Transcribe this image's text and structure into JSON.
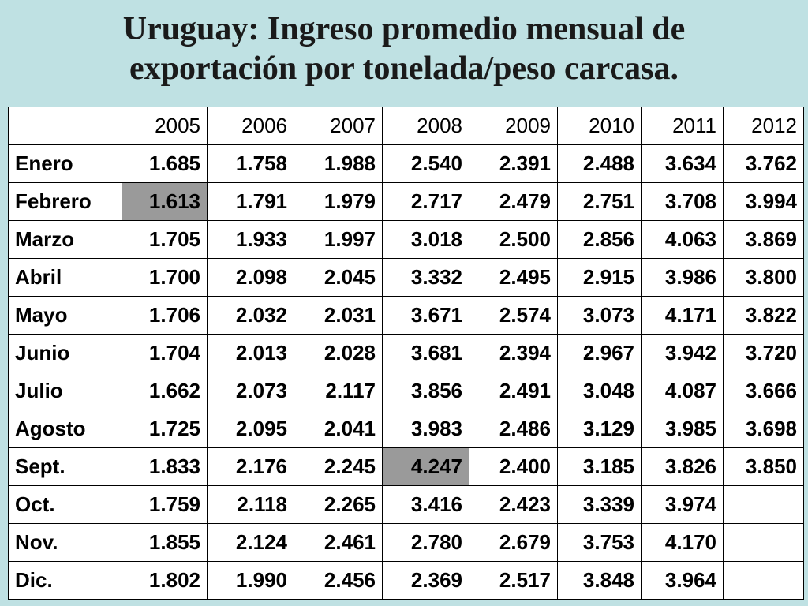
{
  "title_line1": "Uruguay: Ingreso promedio mensual de",
  "title_line2": "exportación por tonelada/peso carcasa.",
  "colors": {
    "background": "#bfe1e3",
    "highlight": "#9a9a9a",
    "table_bg": "#ffffff"
  },
  "chart_data": {
    "type": "table",
    "columns": [
      "",
      "2005",
      "2006",
      "2007",
      "2008",
      "2009",
      "2010",
      "2011",
      "2012"
    ],
    "rows": [
      {
        "label": "Enero",
        "values": [
          "1.685",
          "1.758",
          "1.988",
          "2.540",
          "2.391",
          "2.488",
          "3.634",
          "3.762"
        ]
      },
      {
        "label": "Febrero",
        "values": [
          "1.613",
          "1.791",
          "1.979",
          "2.717",
          "2.479",
          "2.751",
          "3.708",
          "3.994"
        ]
      },
      {
        "label": "Marzo",
        "values": [
          "1.705",
          "1.933",
          "1.997",
          "3.018",
          "2.500",
          "2.856",
          "4.063",
          "3.869"
        ]
      },
      {
        "label": "Abril",
        "values": [
          "1.700",
          "2.098",
          "2.045",
          "3.332",
          "2.495",
          "2.915",
          "3.986",
          "3.800"
        ]
      },
      {
        "label": "Mayo",
        "values": [
          "1.706",
          "2.032",
          "2.031",
          "3.671",
          "2.574",
          "3.073",
          "4.171",
          "3.822"
        ]
      },
      {
        "label": "Junio",
        "values": [
          "1.704",
          "2.013",
          "2.028",
          "3.681",
          "2.394",
          "2.967",
          "3.942",
          "3.720"
        ]
      },
      {
        "label": "Julio",
        "values": [
          "1.662",
          "2.073",
          "2.117",
          "3.856",
          "2.491",
          "3.048",
          "4.087",
          "3.666"
        ]
      },
      {
        "label": "Agosto",
        "values": [
          "1.725",
          "2.095",
          "2.041",
          "3.983",
          "2.486",
          "3.129",
          "3.985",
          "3.698"
        ]
      },
      {
        "label": "Sept.",
        "values": [
          "1.833",
          "2.176",
          "2.245",
          "4.247",
          "2.400",
          "3.185",
          "3.826",
          "3.850"
        ]
      },
      {
        "label": "Oct.",
        "values": [
          "1.759",
          "2.118",
          "2.265",
          "3.416",
          "2.423",
          "3.339",
          "3.974",
          ""
        ]
      },
      {
        "label": "Nov.",
        "values": [
          "1.855",
          "2.124",
          "2.461",
          "2.780",
          "2.679",
          "3.753",
          "4.170",
          ""
        ]
      },
      {
        "label": "Dic.",
        "values": [
          "1.802",
          "1.990",
          "2.456",
          "2.369",
          "2.517",
          "3.848",
          "3.964",
          ""
        ]
      }
    ],
    "highlighted_cells": [
      {
        "row": "Febrero",
        "column": "2005"
      },
      {
        "row": "Sept.",
        "column": "2008"
      }
    ]
  }
}
